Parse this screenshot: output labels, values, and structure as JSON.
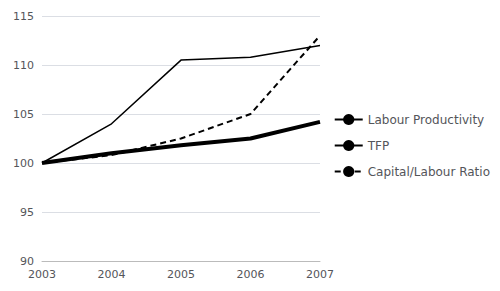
{
  "chart_data": {
    "type": "line",
    "x": [
      2003,
      2004,
      2005,
      2006,
      2007
    ],
    "series": [
      {
        "name": "Labour Productivity",
        "color": "#000000",
        "line_style": "thin",
        "values": [
          100,
          104.0,
          110.5,
          110.8,
          112.0
        ]
      },
      {
        "name": "TFP",
        "color": "#000000",
        "line_style": "thick",
        "values": [
          100,
          101.0,
          101.8,
          102.5,
          104.2
        ]
      },
      {
        "name": "Capital/Labour Ratio",
        "color": "#000000",
        "line_style": "dashed",
        "values": [
          100,
          100.8,
          102.5,
          105.0,
          113.0
        ]
      }
    ],
    "xlim": [
      2003,
      2007
    ],
    "xticks": [
      2003,
      2004,
      2005,
      2006,
      2007
    ],
    "ylim": [
      90,
      115
    ],
    "yticks": [
      90,
      95,
      100,
      105,
      110,
      115
    ],
    "grid": true,
    "legend": "right"
  }
}
